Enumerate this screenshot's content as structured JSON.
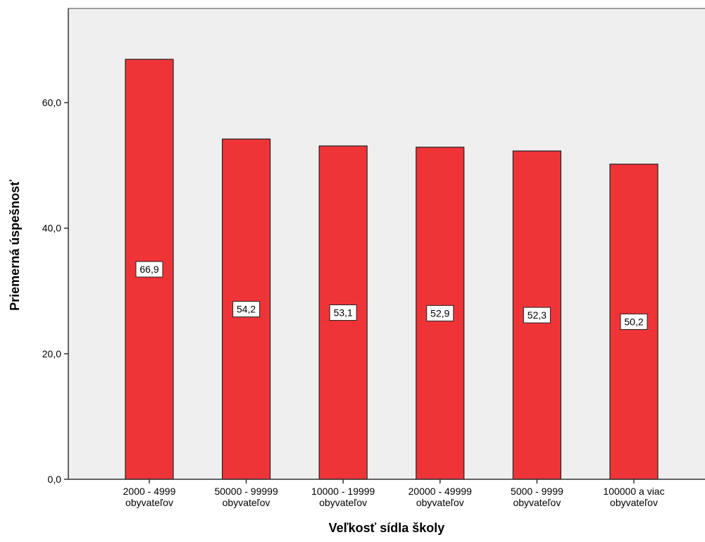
{
  "chart_data": {
    "type": "bar",
    "title": "",
    "xlabel": "Veľkosť sídla školy",
    "ylabel": "Priemerná úspešnosť",
    "categories": [
      [
        "2000 - 4999",
        "obyvateľov"
      ],
      [
        "50000 - 99999",
        "obyvateľov"
      ],
      [
        "10000 - 19999",
        "obyvateľov"
      ],
      [
        "20000 - 49999",
        "obyvateľov"
      ],
      [
        "5000 - 9999",
        "obyvateľov"
      ],
      [
        "100000 a viac",
        "obyvateľov"
      ]
    ],
    "values": [
      66.9,
      54.2,
      53.1,
      52.9,
      52.3,
      50.2
    ],
    "value_labels": [
      "66,9",
      "54,2",
      "53,1",
      "52,9",
      "52,3",
      "50,2"
    ],
    "ylim": [
      0,
      75
    ],
    "yticks": [
      0,
      20,
      40,
      60
    ],
    "ytick_labels": [
      "0,0",
      "20,0",
      "40,0",
      "60,0"
    ],
    "grid": false,
    "legend": "none",
    "colors": {
      "bar_fill": "#ef3438",
      "bar_stroke": "#222222",
      "plot_background": "#efefef",
      "page_background": "#ffffff"
    }
  }
}
